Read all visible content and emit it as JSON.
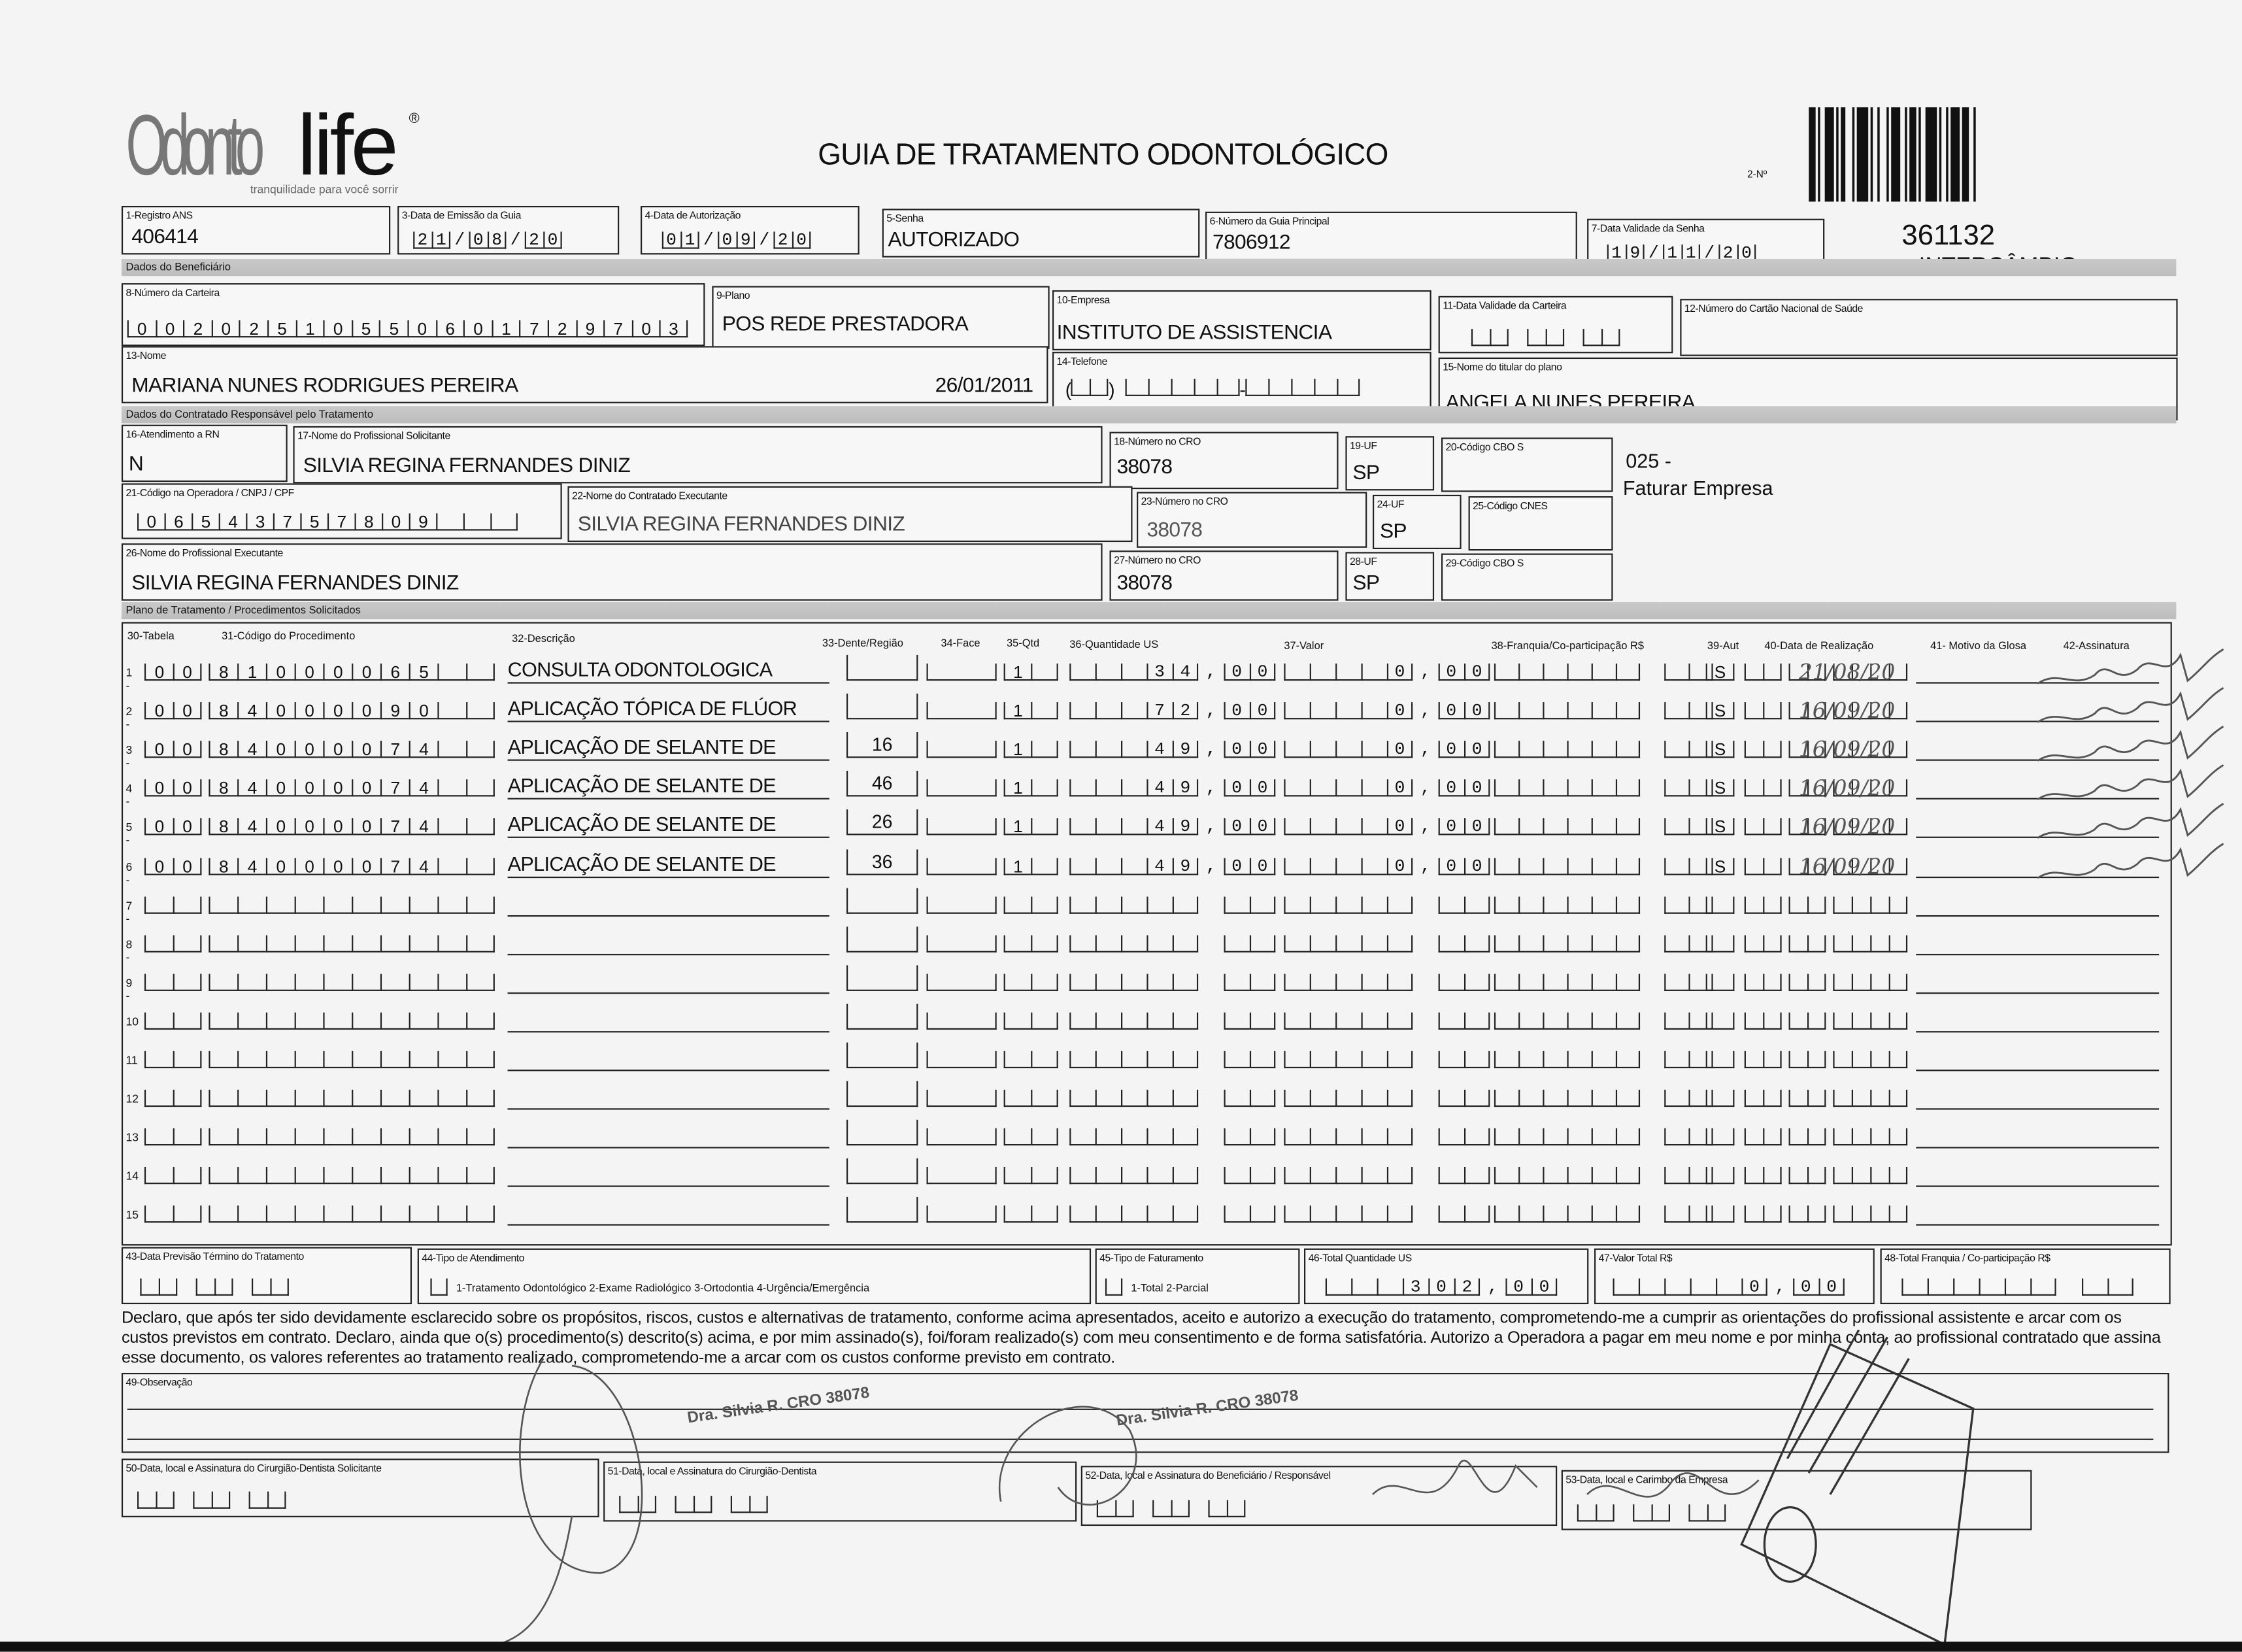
{
  "header": {
    "logo": "Odontolife",
    "logo_tagline": "tranquilidade para você sorrir",
    "title": "GUIA DE TRATAMENTO ODONTOLÓGICO",
    "numero_label": "2-Nº",
    "guide_number": "361132",
    "guide_type": "INTERCÂMBIO"
  },
  "fields": {
    "registro_ans": {
      "label": "1-Registro ANS",
      "value": "406414"
    },
    "data_emissao": {
      "label": "3-Data de Emissão da Guia",
      "value": "21/08/20"
    },
    "data_autorizacao": {
      "label": "4-Data de Autorização",
      "value": "01/09/20"
    },
    "senha": {
      "label": "5-Senha",
      "value": "AUTORIZADO"
    },
    "guia_principal": {
      "label": "6-Número da Guia Principal",
      "value": "7806912"
    },
    "validade_senha": {
      "label": "7-Data Validade da Senha",
      "value": "19/11/20"
    },
    "numero_carteira": {
      "label": "8-Número da Carteira",
      "value": "00202510550601729703"
    },
    "plano": {
      "label": "9-Plano",
      "value": "POS REDE PRESTADORA"
    },
    "empresa": {
      "label": "10-Empresa",
      "value": "INSTITUTO DE ASSISTENCIA"
    },
    "validade_carteira": {
      "label": "11-Data Validade da Carteira",
      "value": ""
    },
    "cartao_nacional": {
      "label": "12-Número do Cartão Nacional de Saúde",
      "value": ""
    },
    "nome": {
      "label": "13-Nome",
      "value": "MARIANA NUNES RODRIGUES PEREIRA",
      "birth": "26/01/2011"
    },
    "telefone": {
      "label": "14-Telefone",
      "value": ""
    },
    "titular": {
      "label": "15-Nome do titular do plano",
      "value": "ANGELA NUNES PEREIRA"
    },
    "atendimento_rn": {
      "label": "16-Atendimento a RN",
      "value": "N"
    },
    "prof_solicitante": {
      "label": "17-Nome do Profissional Solicitante",
      "value": "SILVIA REGINA FERNANDES DINIZ"
    },
    "cro_18": {
      "label": "18-Número no CRO",
      "value": "38078"
    },
    "uf_19": {
      "label": "19-UF",
      "value": "SP"
    },
    "cbo_20": {
      "label": "20-Código CBO S",
      "value": ""
    },
    "codigo_operadora": {
      "label": "21-Código na Operadora / CNPJ / CPF",
      "value": "06543757809"
    },
    "contratado_executante": {
      "label": "22-Nome do Contratado Executante",
      "value": "SILVIA REGINA FERNANDES DINIZ"
    },
    "cro_23": {
      "label": "23-Número no CRO",
      "value": "38078"
    },
    "uf_24": {
      "label": "24-UF",
      "value": "SP"
    },
    "cnes_25": {
      "label": "25-Código CNES",
      "value": ""
    },
    "prof_executante": {
      "label": "26-Nome do Profissional Executante",
      "value": "SILVIA REGINA FERNANDES DINIZ"
    },
    "cro_27": {
      "label": "27-Número no CRO",
      "value": "38078"
    },
    "uf_28": {
      "label": "28-UF",
      "value": "SP"
    },
    "cbo_29": {
      "label": "29-Código CBO S",
      "value": ""
    },
    "faturamento_note": {
      "code": "025 -",
      "text": "Faturar Empresa"
    }
  },
  "sections": {
    "beneficiario": "Dados do Beneficiário",
    "contratado": "Dados do Contratado Responsável pelo Tratamento",
    "plano": "Plano de Tratamento / Procedimentos Solicitados"
  },
  "table": {
    "columns": [
      "30-Tabela",
      "31-Código do Procedimento",
      "32-Descrição",
      "33-Dente/Região",
      "34-Face",
      "35-Qtd",
      "36-Quantidade US",
      "37-Valor",
      "38-Franquia/Co-participação R$",
      "39-Aut",
      "40-Data de Realização",
      "41- Motivo da Glosa",
      "42-Assinatura"
    ],
    "rows": [
      {
        "n": "1 -",
        "tabela": "00",
        "codigo": "81000065",
        "descricao": "CONSULTA ODONTOLOGICA",
        "dente": "",
        "face": "",
        "qtd": "1",
        "us": "34,00",
        "valor": "0,00",
        "franquia": "",
        "aut": "S",
        "data": "21/08/20"
      },
      {
        "n": "2 -",
        "tabela": "00",
        "codigo": "84000090",
        "descricao": "APLICAÇÃO TÓPICA DE FLÚOR",
        "dente": "",
        "face": "",
        "qtd": "1",
        "us": "72,00",
        "valor": "0,00",
        "franquia": "",
        "aut": "S",
        "data": "16/09/20"
      },
      {
        "n": "3 -",
        "tabela": "00",
        "codigo": "84000074",
        "descricao": "APLICAÇÃO DE SELANTE DE",
        "dente": "16",
        "face": "",
        "qtd": "1",
        "us": "49,00",
        "valor": "0,00",
        "franquia": "",
        "aut": "S",
        "data": "16/09/20"
      },
      {
        "n": "4 -",
        "tabela": "00",
        "codigo": "84000074",
        "descricao": "APLICAÇÃO DE SELANTE DE",
        "dente": "46",
        "face": "",
        "qtd": "1",
        "us": "49,00",
        "valor": "0,00",
        "franquia": "",
        "aut": "S",
        "data": "16/09/20"
      },
      {
        "n": "5 -",
        "tabela": "00",
        "codigo": "84000074",
        "descricao": "APLICAÇÃO DE SELANTE DE",
        "dente": "26",
        "face": "",
        "qtd": "1",
        "us": "49,00",
        "valor": "0,00",
        "franquia": "",
        "aut": "S",
        "data": "16/09/20"
      },
      {
        "n": "6 -",
        "tabela": "00",
        "codigo": "84000074",
        "descricao": "APLICAÇÃO DE SELANTE DE",
        "dente": "36",
        "face": "",
        "qtd": "1",
        "us": "49,00",
        "valor": "0,00",
        "franquia": "",
        "aut": "S",
        "data": "16/09/20"
      },
      {
        "n": "7 -",
        "tabela": "",
        "codigo": "",
        "descricao": "",
        "dente": "",
        "face": "",
        "qtd": "",
        "us": "",
        "valor": "",
        "franquia": "",
        "aut": "",
        "data": ""
      },
      {
        "n": "8 -",
        "tabela": "",
        "codigo": "",
        "descricao": "",
        "dente": "",
        "face": "",
        "qtd": "",
        "us": "",
        "valor": "",
        "franquia": "",
        "aut": "",
        "data": ""
      },
      {
        "n": "9 -",
        "tabela": "",
        "codigo": "",
        "descricao": "",
        "dente": "",
        "face": "",
        "qtd": "",
        "us": "",
        "valor": "",
        "franquia": "",
        "aut": "",
        "data": ""
      },
      {
        "n": "10",
        "tabela": "",
        "codigo": "",
        "descricao": "",
        "dente": "",
        "face": "",
        "qtd": "",
        "us": "",
        "valor": "",
        "franquia": "",
        "aut": "",
        "data": ""
      },
      {
        "n": "11",
        "tabela": "",
        "codigo": "",
        "descricao": "",
        "dente": "",
        "face": "",
        "qtd": "",
        "us": "",
        "valor": "",
        "franquia": "",
        "aut": "",
        "data": ""
      },
      {
        "n": "12",
        "tabela": "",
        "codigo": "",
        "descricao": "",
        "dente": "",
        "face": "",
        "qtd": "",
        "us": "",
        "valor": "",
        "franquia": "",
        "aut": "",
        "data": ""
      },
      {
        "n": "13",
        "tabela": "",
        "codigo": "",
        "descricao": "",
        "dente": "",
        "face": "",
        "qtd": "",
        "us": "",
        "valor": "",
        "franquia": "",
        "aut": "",
        "data": ""
      },
      {
        "n": "14",
        "tabela": "",
        "codigo": "",
        "descricao": "",
        "dente": "",
        "face": "",
        "qtd": "",
        "us": "",
        "valor": "",
        "franquia": "",
        "aut": "",
        "data": ""
      },
      {
        "n": "15",
        "tabela": "",
        "codigo": "",
        "descricao": "",
        "dente": "",
        "face": "",
        "qtd": "",
        "us": "",
        "valor": "",
        "franquia": "",
        "aut": "",
        "data": ""
      }
    ]
  },
  "footer": {
    "previsao": {
      "label": "43-Data Previsão Término do Tratamento",
      "value": ""
    },
    "tipo_atendimento": {
      "label": "44-Tipo de Atendimento",
      "options": "1-Tratamento Odontológico  2-Exame Radiológico  3-Ortodontia  4-Urgência/Emergência"
    },
    "tipo_faturamento": {
      "label": "45-Tipo de Faturamento",
      "options": "1-Total  2-Parcial"
    },
    "total_us": {
      "label": "46-Total Quantidade US",
      "value": "302,00"
    },
    "valor_total": {
      "label": "47-Valor Total R$",
      "value": "0,00"
    },
    "total_franquia": {
      "label": "48-Total Franquia / Co-participação R$",
      "value": ""
    },
    "declaration": "Declaro, que após ter sido devidamente esclarecido sobre os propósitos, riscos, custos e alternativas de tratamento, conforme acima apresentados, aceito e autorizo a execução do tratamento, comprometendo-me a cumprir as orientações do profissional assistente e arcar com os custos previstos em contrato. Declaro, ainda que o(s) procedimento(s) descrito(s) acima, e por mim assinado(s), foi/foram realizado(s) com meu consentimento e de forma satisfatória. Autorizo a Operadora a pagar em meu nome e por minha conta, ao profissional contratado que assina esse documento, os valores referentes ao tratamento realizado, comprometendo-me a arcar com os custos conforme previsto em contrato.",
    "observacao": {
      "label": "49-Observação",
      "value": ""
    },
    "sig50": {
      "label": "50-Data, local e Assinatura do Cirurgião-Dentista Solicitante"
    },
    "sig51": {
      "label": "51-Data, local e Assinatura do Cirurgião-Dentista"
    },
    "sig52": {
      "label": "52-Data, local e Assinatura do Beneficiário / Responsável"
    },
    "sig53": {
      "label": "53-Data, local e Carimbo da Empresa"
    }
  },
  "stamps": {
    "dentist": "Dra. Silvia R.",
    "cro": "CRO 38078"
  }
}
